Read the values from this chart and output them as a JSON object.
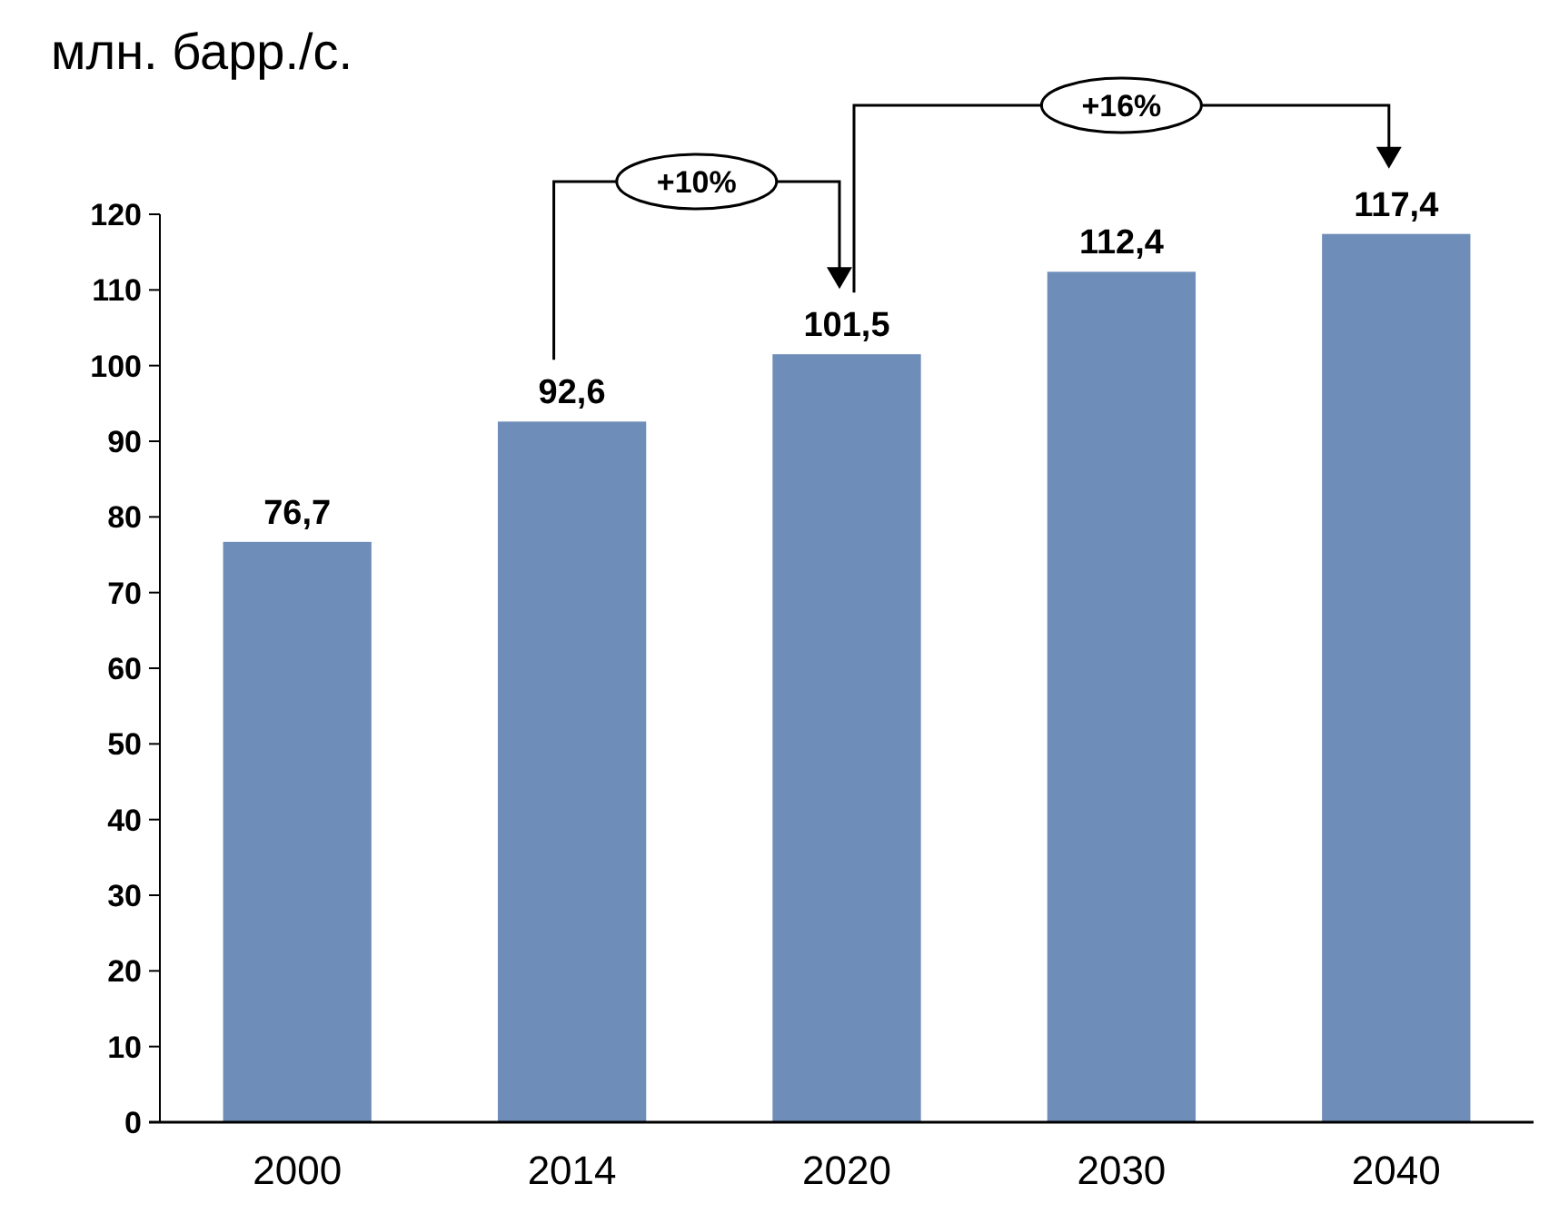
{
  "chart_data": {
    "type": "bar",
    "title": "млн. барр./с.",
    "categories": [
      "2000",
      "2014",
      "2020",
      "2030",
      "2040"
    ],
    "values": [
      76.7,
      92.6,
      101.5,
      112.4,
      117.4
    ],
    "value_labels": [
      "76,7",
      "92,6",
      "101,5",
      "112,4",
      "117,4"
    ],
    "color": "#6f8db9",
    "ylim": [
      0,
      120
    ],
    "yticks": [
      0,
      10,
      20,
      30,
      40,
      50,
      60,
      70,
      80,
      90,
      100,
      110,
      120
    ],
    "annotations": [
      "+10%",
      "+16%"
    ],
    "grid": false
  }
}
